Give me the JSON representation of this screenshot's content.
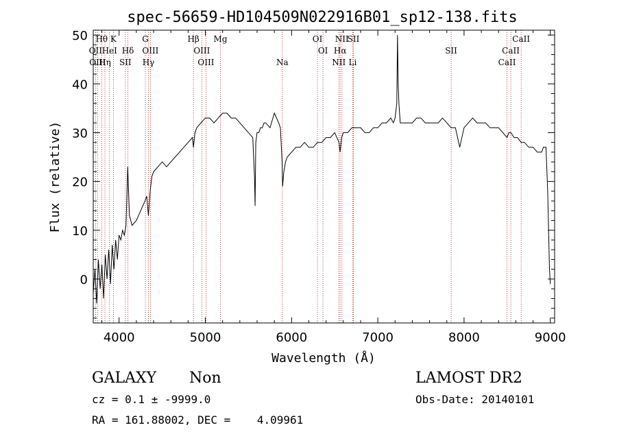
{
  "chart_data": {
    "type": "line",
    "title": "spec-56659-HD104509N022916B01_sp12-138.fits",
    "xlabel": "Wavelength (Å)",
    "ylabel": "Flux (relative)",
    "xlim": [
      3700,
      9050
    ],
    "ylim": [
      -9,
      51
    ],
    "xticks": [
      4000,
      5000,
      6000,
      7000,
      8000,
      9000
    ],
    "yticks": [
      0,
      10,
      20,
      30,
      40,
      50
    ],
    "grid": false,
    "series": [
      {
        "x": [
          3700,
          3720,
          3740,
          3760,
          3780,
          3800,
          3820,
          3840,
          3860,
          3880,
          3900,
          3920,
          3940,
          3960,
          3980,
          4000,
          4020,
          4040,
          4060,
          4080,
          4100,
          4120,
          4150,
          4200,
          4250,
          4300,
          4320,
          4340,
          4360,
          4380,
          4400,
          4450,
          4500,
          4550,
          4600,
          4650,
          4700,
          4750,
          4800,
          4850,
          4862,
          4880,
          4900,
          4950,
          5000,
          5050,
          5100,
          5150,
          5200,
          5250,
          5300,
          5350,
          5400,
          5450,
          5500,
          5550,
          5570,
          5577,
          5585,
          5600,
          5620,
          5640,
          5660,
          5680,
          5700,
          5750,
          5800,
          5850,
          5870,
          5890,
          5896,
          5910,
          5930,
          5950,
          6000,
          6050,
          6100,
          6150,
          6200,
          6250,
          6300,
          6350,
          6400,
          6450,
          6500,
          6550,
          6563,
          6580,
          6600,
          6650,
          6700,
          6750,
          6800,
          6850,
          6900,
          6950,
          7000,
          7050,
          7100,
          7150,
          7180,
          7200,
          7220,
          7228,
          7236,
          7245,
          7260,
          7300,
          7350,
          7400,
          7450,
          7500,
          7550,
          7600,
          7650,
          7700,
          7750,
          7800,
          7850,
          7870,
          7900,
          7950,
          8000,
          8050,
          8100,
          8150,
          8200,
          8250,
          8300,
          8350,
          8400,
          8450,
          8498,
          8520,
          8542,
          8580,
          8620,
          8662,
          8700,
          8750,
          8800,
          8850,
          8900,
          8920,
          8950,
          8970,
          8990,
          9000
        ],
        "y": [
          -3,
          2,
          -5,
          4,
          -2,
          3,
          -4,
          5,
          0,
          6,
          -1,
          7,
          2,
          8,
          4,
          9,
          8,
          10,
          9,
          11,
          23,
          13,
          11,
          12,
          14,
          16,
          17,
          13,
          18,
          21,
          22,
          23,
          24,
          23,
          24,
          25,
          26,
          27,
          28,
          29,
          27,
          30,
          31,
          32,
          33,
          33,
          32,
          33,
          34,
          34,
          33,
          33,
          32,
          31,
          30,
          29,
          21,
          15,
          28,
          30,
          30,
          31,
          31,
          32,
          32,
          31,
          34,
          32,
          31,
          24,
          19,
          22,
          24,
          25,
          26,
          27,
          27,
          28,
          27,
          27,
          28,
          28,
          29,
          29,
          30,
          28,
          26,
          29,
          30,
          30,
          31,
          31,
          31,
          30,
          30,
          31,
          31,
          32,
          32,
          33,
          32,
          33,
          36,
          50,
          40,
          36,
          32,
          32,
          32,
          32,
          33,
          33,
          32,
          32,
          32,
          32,
          33,
          32,
          31,
          31,
          31,
          27,
          31,
          32,
          33,
          32,
          32,
          32,
          31,
          31,
          31,
          30,
          29,
          30,
          30,
          29,
          29,
          28,
          28,
          27,
          27,
          26,
          26,
          27,
          27,
          18,
          2,
          -1
        ]
      }
    ],
    "lines": [
      {
        "label": "Hθ",
        "x": 3798
      },
      {
        "label": "K",
        "x": 3934
      },
      {
        "label": "G",
        "x": 4305
      },
      {
        "label": "Hβ",
        "x": 4862
      },
      {
        "label": "Mg",
        "x": 5175
      },
      {
        "label": "OI",
        "x": 6300
      },
      {
        "label": "NII",
        "x": 6584
      },
      {
        "label": "SII",
        "x": 6717
      },
      {
        "label": "CaII",
        "x": 8662
      },
      {
        "label": "OII",
        "x": 3727
      },
      {
        "label": "HeI",
        "x": 3889
      },
      {
        "label": "Hδ",
        "x": 4102
      },
      {
        "label": "OIII",
        "x": 4363
      },
      {
        "label": "OIII",
        "x": 4959
      },
      {
        "label": "OI",
        "x": 6364
      },
      {
        "label": "Hα",
        "x": 6563
      },
      {
        "label": "SII",
        "x": 7850
      },
      {
        "label": "CaII",
        "x": 8542
      },
      {
        "label": "OIII",
        "x": 3750
      },
      {
        "label": "Hη",
        "x": 3835
      },
      {
        "label": "SII",
        "x": 4072
      },
      {
        "label": "Hγ",
        "x": 4340
      },
      {
        "label": "OIII",
        "x": 5007
      },
      {
        "label": "Na",
        "x": 5893
      },
      {
        "label": "NII",
        "x": 6548
      },
      {
        "label": "Li",
        "x": 6708
      },
      {
        "label": "CaII",
        "x": 8498
      }
    ]
  },
  "footer": {
    "class_label": "GALAXY",
    "subclass_label": "Non",
    "survey_label": "LAMOST DR2",
    "cz_line": "cz = 0.1 ± -9999.0",
    "obs_date": "Obs-Date: 20140101",
    "coords_line": "RA = 161.88002, DEC =    4.09961"
  }
}
